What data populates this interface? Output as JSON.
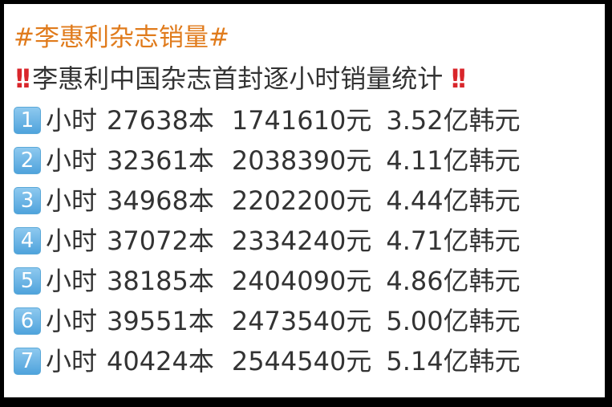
{
  "hashtag": "#李惠利杂志销量#",
  "heading": "李惠利中国杂志首封逐小时销量统计",
  "heading_icon": "double-exclamation-icon",
  "accent_color": "#e07b1c",
  "rows": [
    {
      "index": "1",
      "label": "小时",
      "copies": "27638本",
      "revenue": "1741610元",
      "krw": "3.52亿韩元"
    },
    {
      "index": "2",
      "label": "小时",
      "copies": "32361本",
      "revenue": "2038390元",
      "krw": "4.11亿韩元"
    },
    {
      "index": "3",
      "label": "小时",
      "copies": "34968本",
      "revenue": "2202200元",
      "krw": "4.44亿韩元"
    },
    {
      "index": "4",
      "label": "小时",
      "copies": "37072本",
      "revenue": "2334240元",
      "krw": "4.71亿韩元"
    },
    {
      "index": "5",
      "label": "小时",
      "copies": "38185本",
      "revenue": "2404090元",
      "krw": "4.86亿韩元"
    },
    {
      "index": "6",
      "label": "小时",
      "copies": "39551本",
      "revenue": "2473540元",
      "krw": "5.00亿韩元"
    },
    {
      "index": "7",
      "label": "小时",
      "copies": "40424本",
      "revenue": "2544540元",
      "krw": "5.14亿韩元"
    }
  ]
}
